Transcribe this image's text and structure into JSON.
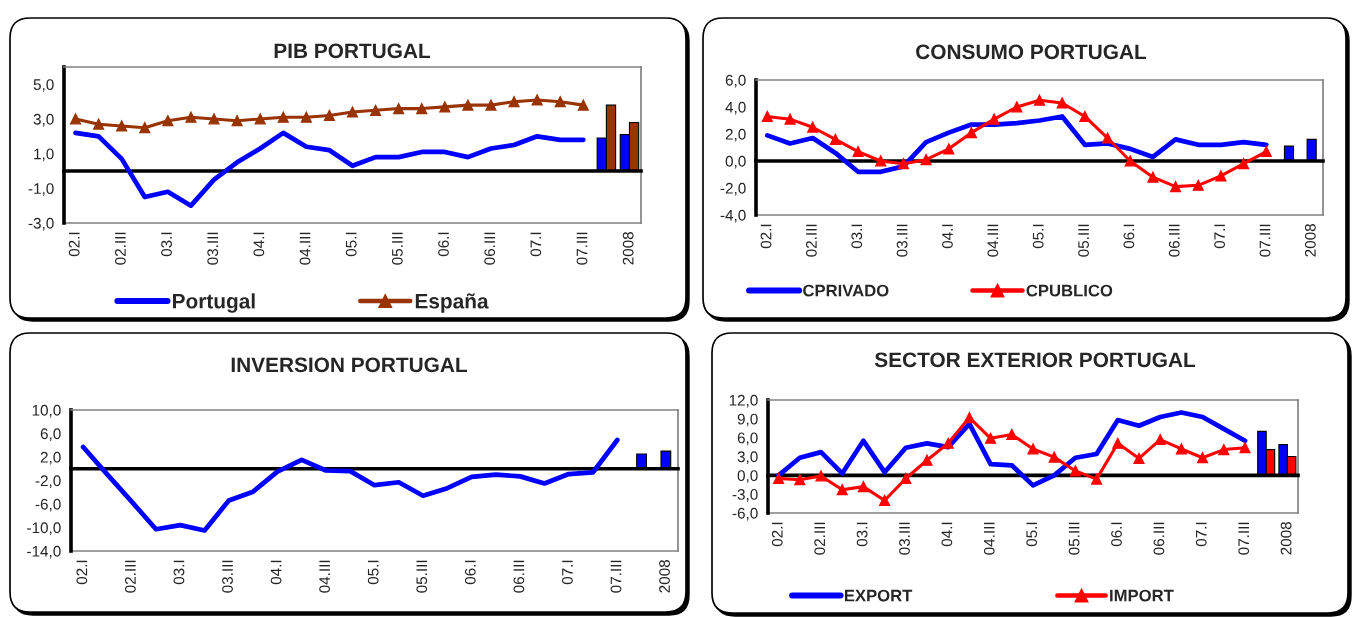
{
  "chart_data": [
    {
      "type": "line",
      "title": "PIB PORTUGAL",
      "categories": [
        "02.I",
        null,
        "02.III",
        null,
        "03.I",
        null,
        "03.III",
        null,
        "04.I",
        null,
        "04.III",
        null,
        "05.I",
        null,
        "05.III",
        null,
        "06.I",
        null,
        "06.III",
        null,
        "07.I",
        null,
        "07.III",
        null,
        "2008"
      ],
      "series": [
        {
          "name": "Portugal",
          "color": "#0000ff",
          "values": [
            2.2,
            2.0,
            0.7,
            -1.5,
            -1.2,
            -2.0,
            -0.5,
            0.5,
            1.3,
            2.2,
            1.4,
            1.2,
            0.3,
            0.8,
            0.8,
            1.1,
            1.1,
            0.8,
            1.3,
            1.5,
            2.0,
            1.8,
            1.8,
            null,
            null
          ]
        },
        {
          "name": "España",
          "color": "#993300",
          "marker": "triangle",
          "values": [
            3.0,
            2.7,
            2.6,
            2.5,
            2.9,
            3.1,
            3.0,
            2.9,
            3.0,
            3.1,
            3.1,
            3.2,
            3.4,
            3.5,
            3.6,
            3.6,
            3.7,
            3.8,
            3.8,
            4.0,
            4.1,
            4.0,
            3.8,
            null,
            null
          ]
        },
        {
          "type": "bar",
          "color": "#0000ff",
          "values": [
            null,
            null,
            null,
            null,
            null,
            null,
            null,
            null,
            null,
            null,
            null,
            null,
            null,
            null,
            null,
            null,
            null,
            null,
            null,
            null,
            null,
            null,
            null,
            1.9,
            2.1
          ]
        },
        {
          "type": "bar",
          "color": "#993300",
          "values": [
            null,
            null,
            null,
            null,
            null,
            null,
            null,
            null,
            null,
            null,
            null,
            null,
            null,
            null,
            null,
            null,
            null,
            null,
            null,
            null,
            null,
            null,
            null,
            3.8,
            2.8
          ]
        }
      ],
      "ylim": [
        -3,
        6
      ],
      "yticks": [
        {
          "value": -3,
          "label": "-3,0"
        },
        {
          "value": -1,
          "label": "-1,0"
        },
        {
          "value": 1,
          "label": "1,0"
        },
        {
          "value": 3,
          "label": "3,0"
        },
        {
          "value": 5,
          "label": "5,0"
        }
      ],
      "legend": "bottom"
    },
    {
      "type": "line",
      "title": "CONSUMO PORTUGAL",
      "categories": [
        "02.I",
        null,
        "02.III",
        null,
        "03.I",
        null,
        "03.III",
        null,
        "04.I",
        null,
        "04.III",
        null,
        "05.I",
        null,
        "05.III",
        null,
        "06.I",
        null,
        "06.III",
        null,
        "07.I",
        null,
        "07.III",
        null,
        "2008"
      ],
      "series": [
        {
          "name": "CPRIVADO",
          "color": "#0000ff",
          "values": [
            1.9,
            1.3,
            1.7,
            0.6,
            -0.8,
            -0.8,
            -0.4,
            1.4,
            2.1,
            2.7,
            2.7,
            2.8,
            3.0,
            3.3,
            1.2,
            1.3,
            0.9,
            0.3,
            1.6,
            1.2,
            1.2,
            1.4,
            1.2,
            null,
            null
          ]
        },
        {
          "name": "CPUBLICO",
          "color": "#ff0000",
          "marker": "triangle",
          "values": [
            3.3,
            3.1,
            2.5,
            1.6,
            0.7,
            0.0,
            -0.2,
            0.1,
            0.9,
            2.1,
            3.1,
            4.0,
            4.5,
            4.3,
            3.3,
            1.7,
            0.0,
            -1.2,
            -1.9,
            -1.8,
            -1.1,
            -0.2,
            0.7,
            null,
            null
          ]
        },
        {
          "type": "bar",
          "color": "#0000ff",
          "values": [
            null,
            null,
            null,
            null,
            null,
            null,
            null,
            null,
            null,
            null,
            null,
            null,
            null,
            null,
            null,
            null,
            null,
            null,
            null,
            null,
            null,
            null,
            null,
            1.1,
            1.6
          ]
        }
      ],
      "ylim": [
        -4,
        6
      ],
      "yticks": [
        {
          "value": -4,
          "label": "-4,0"
        },
        {
          "value": -2,
          "label": "-2,0"
        },
        {
          "value": 0,
          "label": "0,0"
        },
        {
          "value": 2,
          "label": "2,0"
        },
        {
          "value": 4,
          "label": "4,0"
        },
        {
          "value": 6,
          "label": "6,0"
        }
      ],
      "legend": "bottom"
    },
    {
      "type": "line",
      "title": "INVERSION PORTUGAL",
      "categories": [
        "02.I",
        null,
        "02.III",
        null,
        "03.I",
        null,
        "03.III",
        null,
        "04.I",
        null,
        "04.III",
        null,
        "05.I",
        null,
        "05.III",
        null,
        "06.I",
        null,
        "06.III",
        null,
        "07.I",
        null,
        "07.III",
        null,
        "2008"
      ],
      "series": [
        {
          "color": "#0000ff",
          "values": [
            3.7,
            -1.0,
            -5.6,
            -10.3,
            -9.6,
            -10.5,
            -5.4,
            -3.9,
            -0.5,
            1.5,
            -0.3,
            -0.4,
            -2.8,
            -2.3,
            -4.6,
            -3.3,
            -1.4,
            -1.0,
            -1.3,
            -2.5,
            -0.9,
            -0.6,
            4.9,
            null,
            null
          ]
        },
        {
          "type": "bar",
          "color": "#0000ff",
          "values": [
            null,
            null,
            null,
            null,
            null,
            null,
            null,
            null,
            null,
            null,
            null,
            null,
            null,
            null,
            null,
            null,
            null,
            null,
            null,
            null,
            null,
            null,
            null,
            2.5,
            3.0
          ]
        }
      ],
      "ylim": [
        -14,
        10
      ],
      "yticks": [
        {
          "value": -14,
          "label": "-14,0"
        },
        {
          "value": -10,
          "label": "-10,0"
        },
        {
          "value": -6,
          "label": "-6,0"
        },
        {
          "value": -2,
          "label": "-2,0"
        },
        {
          "value": 2,
          "label": "2,0"
        },
        {
          "value": 6,
          "label": "6,0"
        },
        {
          "value": 10,
          "label": "10,0"
        }
      ]
    },
    {
      "type": "line",
      "title": "SECTOR EXTERIOR PORTUGAL",
      "categories": [
        "02.I",
        null,
        "02.III",
        null,
        "03.I",
        null,
        "03.III",
        null,
        "04.I",
        null,
        "04.III",
        null,
        "05.I",
        null,
        "05.III",
        null,
        "06.I",
        null,
        "06.III",
        null,
        "07.I",
        null,
        "07.III",
        null,
        "2008"
      ],
      "series": [
        {
          "name": "EXPORT",
          "color": "#0000ff",
          "values": [
            0.0,
            2.8,
            3.7,
            0.3,
            5.5,
            0.5,
            4.4,
            5.1,
            4.5,
            8.2,
            1.8,
            1.6,
            -1.6,
            0.0,
            2.8,
            3.4,
            8.8,
            7.9,
            9.3,
            10.0,
            9.3,
            7.4,
            5.5,
            null,
            null
          ]
        },
        {
          "name": "IMPORT",
          "color": "#ff0000",
          "marker": "triangle",
          "values": [
            -0.5,
            -0.7,
            -0.1,
            -2.3,
            -1.8,
            -4.0,
            -0.5,
            2.4,
            5.1,
            9.2,
            5.9,
            6.5,
            4.2,
            2.9,
            0.7,
            -0.6,
            5.1,
            2.7,
            5.7,
            4.2,
            2.8,
            4.1,
            4.4,
            null,
            null
          ]
        },
        {
          "type": "bar",
          "color": "#0000ff",
          "values": [
            null,
            null,
            null,
            null,
            null,
            null,
            null,
            null,
            null,
            null,
            null,
            null,
            null,
            null,
            null,
            null,
            null,
            null,
            null,
            null,
            null,
            null,
            null,
            7.0,
            4.9
          ]
        },
        {
          "type": "bar",
          "color": "#ff0000",
          "values": [
            null,
            null,
            null,
            null,
            null,
            null,
            null,
            null,
            null,
            null,
            null,
            null,
            null,
            null,
            null,
            null,
            null,
            null,
            null,
            null,
            null,
            null,
            null,
            4.1,
            3.0
          ]
        }
      ],
      "ylim": [
        -6,
        12
      ],
      "yticks": [
        {
          "value": -6,
          "label": "-6,0"
        },
        {
          "value": -3,
          "label": "-3,0"
        },
        {
          "value": 0,
          "label": "0,0"
        },
        {
          "value": 3,
          "label": "3,0"
        },
        {
          "value": 6,
          "label": "6,0"
        },
        {
          "value": 9,
          "label": "9,0"
        },
        {
          "value": 12,
          "label": "12,0"
        }
      ],
      "legend": "bottom"
    }
  ]
}
